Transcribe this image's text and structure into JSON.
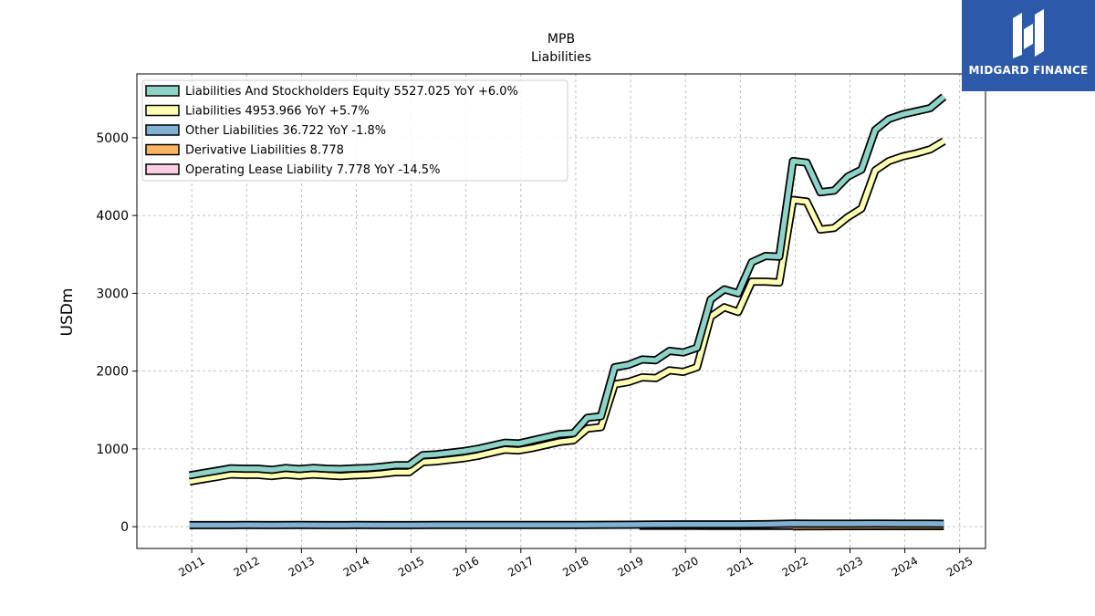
{
  "brand": {
    "name": "MIDGARD FINANCE"
  },
  "chart_data": {
    "type": "line",
    "title": "MPB",
    "subtitle": "Liabilities",
    "ylabel": "USDm",
    "xlabel": "",
    "ylim": [
      -280,
      5820
    ],
    "xlim": [
      2010.0,
      2025.47
    ],
    "yticks": [
      0,
      1000,
      2000,
      3000,
      4000,
      5000
    ],
    "xticks": [
      "2011",
      "2012",
      "2013",
      "2014",
      "2015",
      "2016",
      "2017",
      "2018",
      "2019",
      "2020",
      "2021",
      "2022",
      "2023",
      "2024",
      "2025"
    ],
    "grid": true,
    "legend_position": "top-left",
    "series": [
      {
        "name": "Liabilities And Stockholders Equity  5527.025 YoY +6.0%",
        "color": "#8dd3c7",
        "x": [
          2010.96,
          2011.21,
          2011.46,
          2011.71,
          2011.96,
          2012.21,
          2012.46,
          2012.71,
          2012.96,
          2013.21,
          2013.46,
          2013.71,
          2013.96,
          2014.21,
          2014.46,
          2014.71,
          2014.96,
          2015.21,
          2015.46,
          2015.71,
          2015.96,
          2016.21,
          2016.46,
          2016.71,
          2016.96,
          2017.21,
          2017.46,
          2017.71,
          2017.96,
          2018.21,
          2018.46,
          2018.71,
          2018.96,
          2019.21,
          2019.46,
          2019.71,
          2019.96,
          2020.21,
          2020.46,
          2020.71,
          2020.96,
          2021.21,
          2021.46,
          2021.71,
          2021.96,
          2022.21,
          2022.46,
          2022.71,
          2022.96,
          2023.21,
          2023.46,
          2023.71,
          2023.96,
          2024.21,
          2024.46,
          2024.71
        ],
        "values": [
          660,
          690,
          720,
          750,
          745,
          745,
          730,
          755,
          740,
          755,
          745,
          740,
          750,
          755,
          770,
          790,
          790,
          920,
          930,
          950,
          970,
          1000,
          1040,
          1080,
          1070,
          1110,
          1150,
          1190,
          1200,
          1400,
          1420,
          2050,
          2080,
          2150,
          2140,
          2260,
          2240,
          2300,
          2920,
          3050,
          3000,
          3400,
          3480,
          3470,
          4700,
          4680,
          4300,
          4320,
          4500,
          4590,
          5100,
          5240,
          5300,
          5340,
          5380,
          5527
        ]
      },
      {
        "name": "Liabilities  4953.966 YoY +5.7%",
        "color": "#ffffb3",
        "x": [
          2010.96,
          2011.21,
          2011.46,
          2011.71,
          2011.96,
          2012.21,
          2012.46,
          2012.71,
          2012.96,
          2013.21,
          2013.46,
          2013.71,
          2013.96,
          2014.21,
          2014.46,
          2014.71,
          2014.96,
          2015.21,
          2015.46,
          2015.71,
          2015.96,
          2016.21,
          2016.46,
          2016.71,
          2016.96,
          2017.21,
          2017.46,
          2017.71,
          2017.96,
          2018.21,
          2018.46,
          2018.71,
          2018.96,
          2019.21,
          2019.46,
          2019.71,
          2019.96,
          2020.21,
          2020.46,
          2020.71,
          2020.96,
          2021.21,
          2021.46,
          2021.71,
          2021.96,
          2022.21,
          2022.46,
          2022.71,
          2022.96,
          2023.21,
          2023.46,
          2023.71,
          2023.96,
          2024.21,
          2024.46,
          2024.71
        ],
        "values": [
          580,
          610,
          640,
          670,
          665,
          665,
          650,
          670,
          655,
          670,
          660,
          650,
          660,
          665,
          680,
          700,
          700,
          830,
          840,
          860,
          880,
          910,
          950,
          990,
          980,
          1010,
          1050,
          1090,
          1110,
          1260,
          1280,
          1830,
          1860,
          1920,
          1910,
          2010,
          1990,
          2050,
          2700,
          2820,
          2760,
          3150,
          3150,
          3140,
          4200,
          4180,
          3820,
          3840,
          3980,
          4090,
          4580,
          4700,
          4760,
          4800,
          4850,
          4954
        ]
      },
      {
        "name": "Other Liabilities  36.722 YoY -1.8%",
        "color": "#80b1d3",
        "x": [
          2010.96,
          2011.46,
          2011.96,
          2012.46,
          2012.96,
          2013.46,
          2013.96,
          2014.46,
          2014.96,
          2015.46,
          2015.96,
          2016.46,
          2016.96,
          2017.46,
          2017.96,
          2018.46,
          2018.96,
          2019.46,
          2019.96,
          2020.46,
          2020.96,
          2021.46,
          2021.96,
          2022.46,
          2022.96,
          2023.46,
          2023.96,
          2024.46,
          2024.71
        ],
        "values": [
          20,
          20,
          22,
          20,
          22,
          20,
          21,
          20,
          20,
          21,
          22,
          22,
          22,
          22,
          22,
          24,
          25,
          28,
          30,
          30,
          30,
          32,
          40,
          38,
          38,
          40,
          38,
          38,
          37
        ]
      },
      {
        "name": "Derivative Liabilities  8.778",
        "color": "#fdb462",
        "x": [
          2021.96,
          2022.46,
          2022.96,
          2023.46,
          2023.96,
          2024.46,
          2024.71
        ],
        "values": [
          5,
          6,
          7,
          8,
          8,
          9,
          9
        ]
      },
      {
        "name": "Operating Lease Liability  7.778 YoY -14.5%",
        "color": "#fccde5",
        "x": [
          2019.16,
          2019.46,
          2019.96,
          2020.46,
          2020.96,
          2021.46,
          2021.96,
          2022.46,
          2022.96,
          2023.46,
          2023.96,
          2024.46,
          2024.71
        ],
        "values": [
          12,
          12,
          12,
          11,
          11,
          10,
          10,
          9,
          9,
          9,
          9,
          8,
          8
        ]
      }
    ]
  }
}
